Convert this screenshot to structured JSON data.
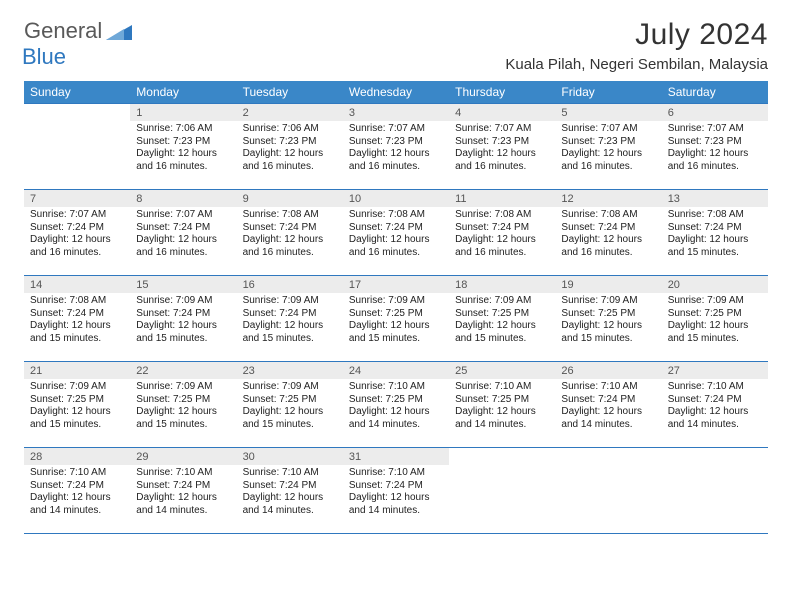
{
  "logo": {
    "text1": "General",
    "text2": "Blue"
  },
  "title": "July 2024",
  "location": "Kuala Pilah, Negeri Sembilan, Malaysia",
  "colors": {
    "header_bg": "#3a87c8",
    "header_text": "#ffffff",
    "daynum_bg": "#ececec",
    "rule": "#2f78bf",
    "logo_gray": "#595959",
    "logo_blue": "#2f78bf"
  },
  "weekdays": [
    "Sunday",
    "Monday",
    "Tuesday",
    "Wednesday",
    "Thursday",
    "Friday",
    "Saturday"
  ],
  "weeks": [
    [
      null,
      {
        "n": "1",
        "sr": "7:06 AM",
        "ss": "7:23 PM",
        "dl": "12 hours and 16 minutes."
      },
      {
        "n": "2",
        "sr": "7:06 AM",
        "ss": "7:23 PM",
        "dl": "12 hours and 16 minutes."
      },
      {
        "n": "3",
        "sr": "7:07 AM",
        "ss": "7:23 PM",
        "dl": "12 hours and 16 minutes."
      },
      {
        "n": "4",
        "sr": "7:07 AM",
        "ss": "7:23 PM",
        "dl": "12 hours and 16 minutes."
      },
      {
        "n": "5",
        "sr": "7:07 AM",
        "ss": "7:23 PM",
        "dl": "12 hours and 16 minutes."
      },
      {
        "n": "6",
        "sr": "7:07 AM",
        "ss": "7:23 PM",
        "dl": "12 hours and 16 minutes."
      }
    ],
    [
      {
        "n": "7",
        "sr": "7:07 AM",
        "ss": "7:24 PM",
        "dl": "12 hours and 16 minutes."
      },
      {
        "n": "8",
        "sr": "7:07 AM",
        "ss": "7:24 PM",
        "dl": "12 hours and 16 minutes."
      },
      {
        "n": "9",
        "sr": "7:08 AM",
        "ss": "7:24 PM",
        "dl": "12 hours and 16 minutes."
      },
      {
        "n": "10",
        "sr": "7:08 AM",
        "ss": "7:24 PM",
        "dl": "12 hours and 16 minutes."
      },
      {
        "n": "11",
        "sr": "7:08 AM",
        "ss": "7:24 PM",
        "dl": "12 hours and 16 minutes."
      },
      {
        "n": "12",
        "sr": "7:08 AM",
        "ss": "7:24 PM",
        "dl": "12 hours and 16 minutes."
      },
      {
        "n": "13",
        "sr": "7:08 AM",
        "ss": "7:24 PM",
        "dl": "12 hours and 15 minutes."
      }
    ],
    [
      {
        "n": "14",
        "sr": "7:08 AM",
        "ss": "7:24 PM",
        "dl": "12 hours and 15 minutes."
      },
      {
        "n": "15",
        "sr": "7:09 AM",
        "ss": "7:24 PM",
        "dl": "12 hours and 15 minutes."
      },
      {
        "n": "16",
        "sr": "7:09 AM",
        "ss": "7:24 PM",
        "dl": "12 hours and 15 minutes."
      },
      {
        "n": "17",
        "sr": "7:09 AM",
        "ss": "7:25 PM",
        "dl": "12 hours and 15 minutes."
      },
      {
        "n": "18",
        "sr": "7:09 AM",
        "ss": "7:25 PM",
        "dl": "12 hours and 15 minutes."
      },
      {
        "n": "19",
        "sr": "7:09 AM",
        "ss": "7:25 PM",
        "dl": "12 hours and 15 minutes."
      },
      {
        "n": "20",
        "sr": "7:09 AM",
        "ss": "7:25 PM",
        "dl": "12 hours and 15 minutes."
      }
    ],
    [
      {
        "n": "21",
        "sr": "7:09 AM",
        "ss": "7:25 PM",
        "dl": "12 hours and 15 minutes."
      },
      {
        "n": "22",
        "sr": "7:09 AM",
        "ss": "7:25 PM",
        "dl": "12 hours and 15 minutes."
      },
      {
        "n": "23",
        "sr": "7:09 AM",
        "ss": "7:25 PM",
        "dl": "12 hours and 15 minutes."
      },
      {
        "n": "24",
        "sr": "7:10 AM",
        "ss": "7:25 PM",
        "dl": "12 hours and 14 minutes."
      },
      {
        "n": "25",
        "sr": "7:10 AM",
        "ss": "7:25 PM",
        "dl": "12 hours and 14 minutes."
      },
      {
        "n": "26",
        "sr": "7:10 AM",
        "ss": "7:24 PM",
        "dl": "12 hours and 14 minutes."
      },
      {
        "n": "27",
        "sr": "7:10 AM",
        "ss": "7:24 PM",
        "dl": "12 hours and 14 minutes."
      }
    ],
    [
      {
        "n": "28",
        "sr": "7:10 AM",
        "ss": "7:24 PM",
        "dl": "12 hours and 14 minutes."
      },
      {
        "n": "29",
        "sr": "7:10 AM",
        "ss": "7:24 PM",
        "dl": "12 hours and 14 minutes."
      },
      {
        "n": "30",
        "sr": "7:10 AM",
        "ss": "7:24 PM",
        "dl": "12 hours and 14 minutes."
      },
      {
        "n": "31",
        "sr": "7:10 AM",
        "ss": "7:24 PM",
        "dl": "12 hours and 14 minutes."
      },
      null,
      null,
      null
    ]
  ],
  "labels": {
    "sunrise": "Sunrise:",
    "sunset": "Sunset:",
    "daylight": "Daylight:"
  }
}
